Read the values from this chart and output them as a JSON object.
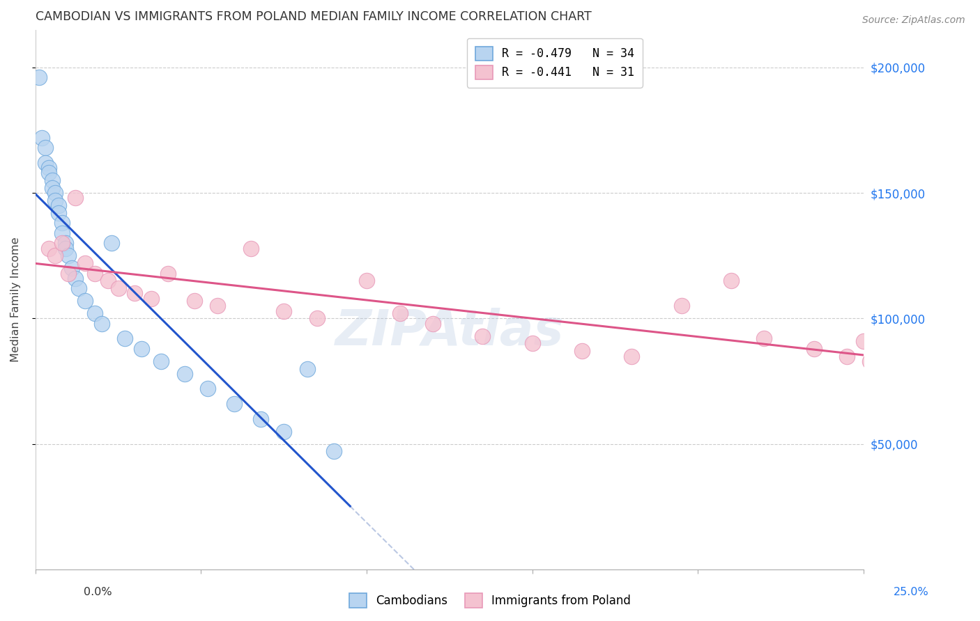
{
  "title": "CAMBODIAN VS IMMIGRANTS FROM POLAND MEDIAN FAMILY INCOME CORRELATION CHART",
  "source": "Source: ZipAtlas.com",
  "ylabel": "Median Family Income",
  "xmin": 0.0,
  "xmax": 0.25,
  "ymin": 0,
  "ymax": 215000,
  "ytick_values": [
    50000,
    100000,
    150000,
    200000
  ],
  "ytick_labels_right": [
    "$50,000",
    "$100,000",
    "$150,000",
    "$200,000"
  ],
  "blue_fill": "#b8d4f0",
  "blue_edge": "#6fa8dc",
  "pink_fill": "#f4c2d0",
  "pink_edge": "#e898b8",
  "blue_line": "#2255cc",
  "pink_line": "#dd5588",
  "blue_dash": "#aabbdd",
  "legend1": "R = -0.479   N = 34",
  "legend2": "R = -0.441   N = 31",
  "leg_cam": "Cambodians",
  "leg_pol": "Immigrants from Poland",
  "watermark": "ZIPAtlas",
  "cam_x": [
    0.001,
    0.002,
    0.003,
    0.003,
    0.004,
    0.004,
    0.005,
    0.005,
    0.006,
    0.006,
    0.007,
    0.007,
    0.008,
    0.008,
    0.009,
    0.009,
    0.01,
    0.011,
    0.012,
    0.013,
    0.015,
    0.018,
    0.02,
    0.023,
    0.027,
    0.032,
    0.038,
    0.045,
    0.052,
    0.06,
    0.068,
    0.075,
    0.082,
    0.09
  ],
  "cam_y": [
    196000,
    172000,
    168000,
    162000,
    160000,
    158000,
    155000,
    152000,
    150000,
    147000,
    145000,
    142000,
    138000,
    134000,
    130000,
    128000,
    125000,
    120000,
    116000,
    112000,
    107000,
    102000,
    98000,
    130000,
    92000,
    88000,
    83000,
    78000,
    72000,
    66000,
    60000,
    55000,
    80000,
    47000
  ],
  "pol_x": [
    0.004,
    0.006,
    0.008,
    0.01,
    0.012,
    0.015,
    0.018,
    0.022,
    0.025,
    0.03,
    0.035,
    0.04,
    0.048,
    0.055,
    0.065,
    0.075,
    0.085,
    0.1,
    0.11,
    0.12,
    0.135,
    0.15,
    0.165,
    0.18,
    0.195,
    0.21,
    0.22,
    0.235,
    0.245,
    0.25,
    0.252
  ],
  "pol_y": [
    128000,
    125000,
    130000,
    118000,
    148000,
    122000,
    118000,
    115000,
    112000,
    110000,
    108000,
    118000,
    107000,
    105000,
    128000,
    103000,
    100000,
    115000,
    102000,
    98000,
    93000,
    90000,
    87000,
    85000,
    105000,
    115000,
    92000,
    88000,
    85000,
    91000,
    83000
  ]
}
